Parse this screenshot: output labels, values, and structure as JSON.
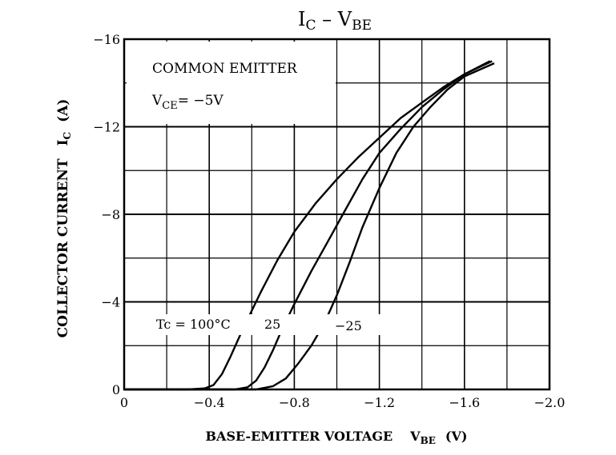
{
  "chart_data": {
    "type": "line",
    "title": {
      "main": "I",
      "main_sub": "C",
      "dash": " – ",
      "main2": "V",
      "main2_sub": "BE"
    },
    "xlabel": {
      "text": "BASE-EMITTER VOLTAGE",
      "sym": "V",
      "sym_sub": "BE",
      "unit": "(V)"
    },
    "ylabel": {
      "text": "COLLECTOR CURRENT",
      "sym": "I",
      "sym_sub": "C",
      "unit": "(A)"
    },
    "xlim": [
      0,
      -2.0
    ],
    "ylim": [
      0,
      -16
    ],
    "x_ticks": [
      {
        "v": 0,
        "label": "0"
      },
      {
        "v": -0.4,
        "label": "−0.4"
      },
      {
        "v": -0.8,
        "label": "−0.8"
      },
      {
        "v": -1.2,
        "label": "−1.2"
      },
      {
        "v": -1.6,
        "label": "−1.6"
      },
      {
        "v": -2.0,
        "label": "−2.0"
      }
    ],
    "y_ticks": [
      {
        "v": 0,
        "label": "0"
      },
      {
        "v": -4,
        "label": "−4"
      },
      {
        "v": -8,
        "label": "−8"
      },
      {
        "v": -12,
        "label": "−12"
      },
      {
        "v": -16,
        "label": "−16"
      }
    ],
    "grid": true,
    "conditions": {
      "line1": "COMMON EMITTER",
      "line2_sym": "V",
      "line2_sub": "CE",
      "line2_rest": "= −5V"
    },
    "series": [
      {
        "name": "Tc = 100°C",
        "x": [
          0,
          -0.3,
          -0.38,
          -0.42,
          -0.46,
          -0.5,
          -0.56,
          -0.64,
          -0.72,
          -0.8,
          -0.9,
          -1.0,
          -1.1,
          -1.2,
          -1.3,
          -1.4,
          -1.5,
          -1.6,
          -1.72
        ],
        "y": [
          0,
          0,
          -0.05,
          -0.2,
          -0.7,
          -1.5,
          -2.8,
          -4.4,
          -5.9,
          -7.2,
          -8.5,
          -9.6,
          -10.6,
          -11.5,
          -12.4,
          -13.1,
          -13.8,
          -14.4,
          -15.0
        ]
      },
      {
        "name": "25",
        "x": [
          0,
          -0.52,
          -0.58,
          -0.62,
          -0.66,
          -0.7,
          -0.74,
          -0.8,
          -0.88,
          -0.96,
          -1.04,
          -1.12,
          -1.2,
          -1.3,
          -1.4,
          -1.5,
          -1.6,
          -1.73
        ],
        "y": [
          0,
          0,
          -0.1,
          -0.4,
          -1.0,
          -1.8,
          -2.7,
          -3.9,
          -5.4,
          -6.8,
          -8.2,
          -9.6,
          -10.8,
          -11.9,
          -12.9,
          -13.7,
          -14.4,
          -15.0
        ]
      },
      {
        "name": "−25",
        "x": [
          0,
          -0.62,
          -0.7,
          -0.76,
          -0.82,
          -0.88,
          -0.94,
          -1.0,
          -1.06,
          -1.12,
          -1.2,
          -1.28,
          -1.36,
          -1.44,
          -1.52,
          -1.6,
          -1.74
        ],
        "y": [
          0,
          0,
          -0.15,
          -0.5,
          -1.2,
          -2.0,
          -3.0,
          -4.3,
          -5.8,
          -7.4,
          -9.2,
          -10.8,
          -12.0,
          -12.9,
          -13.7,
          -14.3,
          -14.9
        ]
      }
    ],
    "annotations": [
      {
        "text": "Tc = 100°C",
        "x": -0.6,
        "y": -3.1
      },
      {
        "text": "25",
        "x": -0.66,
        "y": -3.1
      },
      {
        "text": "−25",
        "x": -0.97,
        "y": -3.1
      }
    ]
  }
}
